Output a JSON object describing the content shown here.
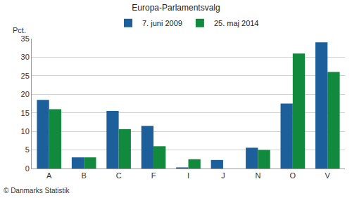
{
  "chart_data": {
    "type": "bar",
    "title": "Europa-Parlamentsvalg",
    "ylabel": "Pct.",
    "categories": [
      "A",
      "B",
      "C",
      "F",
      "I",
      "J",
      "N",
      "O",
      "V"
    ],
    "series": [
      {
        "name": "7. juni 2009",
        "color": "#1c5f9a",
        "values": [
          18.5,
          3.0,
          15.5,
          11.5,
          0.3,
          2.3,
          5.6,
          17.5,
          34.0
        ]
      },
      {
        "name": "25. maj 2014",
        "color": "#118a3e",
        "values": [
          16.0,
          3.0,
          10.6,
          6.0,
          2.5,
          null,
          5.0,
          31.0,
          26.0
        ]
      }
    ],
    "ylim": [
      0,
      35
    ],
    "yticks": [
      0,
      5,
      10,
      15,
      20,
      25,
      30,
      35
    ],
    "grid": true,
    "legend": "top",
    "annotations": [
      "© Danmarks Statistik"
    ]
  }
}
